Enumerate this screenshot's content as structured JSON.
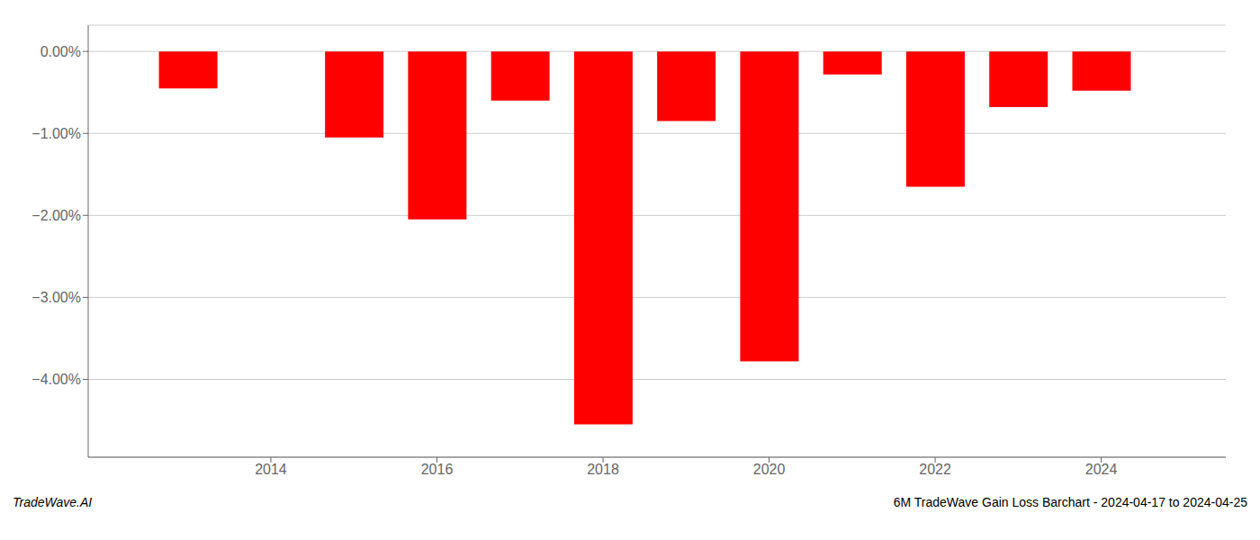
{
  "chart_data": {
    "type": "bar",
    "x": [
      2013,
      2015,
      2016,
      2017,
      2018,
      2019,
      2020,
      2021,
      2022,
      2023,
      2024
    ],
    "values": [
      -0.45,
      -1.05,
      -2.05,
      -0.6,
      -4.55,
      -0.85,
      -3.78,
      -0.28,
      -1.65,
      -0.68,
      -0.48
    ],
    "color": "#ff0000",
    "xlim": [
      2011.8,
      2025.5
    ],
    "xticks": [
      2014,
      2016,
      2018,
      2020,
      2022,
      2024
    ],
    "ylim": [
      -4.95,
      0.32
    ],
    "yticks": [
      {
        "value": 0.0,
        "label": "0.00%"
      },
      {
        "value": -1.0,
        "label": "−1.00%"
      },
      {
        "value": -2.0,
        "label": "−2.00%"
      },
      {
        "value": -3.0,
        "label": "−3.00%"
      },
      {
        "value": -4.0,
        "label": "−4.00%"
      }
    ],
    "grid": true,
    "annotations": [
      "TradeWave.AI",
      "6M TradeWave Gain Loss Barchart - 2024-04-17 to 2024-04-25"
    ]
  }
}
